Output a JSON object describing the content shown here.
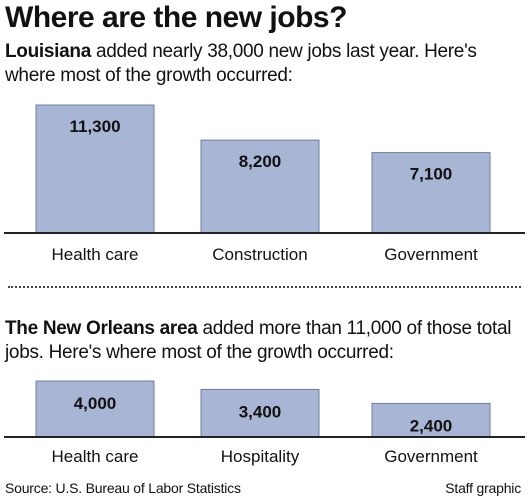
{
  "title": "Where are the new jobs?",
  "chart_data": [
    {
      "type": "bar",
      "intro_lead": "Louisiana",
      "intro_rest": " added nearly 38,000 new jobs last year. Here's where most of the growth occurred:",
      "categories": [
        "Health care",
        "Construction",
        "Government"
      ],
      "values": [
        11300,
        8200,
        7100
      ],
      "value_labels": [
        "11,300",
        "8,200",
        "7,100"
      ],
      "ylim": [
        0,
        11300
      ],
      "bar_color": "#a8b5d4"
    },
    {
      "type": "bar",
      "intro_lead": "The New Orleans area",
      "intro_rest": " added more than 11,000 of those total jobs. Here's where most of the growth occurred:",
      "categories": [
        "Health care",
        "Hospitality",
        "Government"
      ],
      "values": [
        4000,
        3400,
        2400
      ],
      "value_labels": [
        "4,000",
        "3,400",
        "2,400"
      ],
      "ylim": [
        0,
        4000
      ],
      "bar_color": "#a8b5d4"
    }
  ],
  "source": "Source: U.S. Bureau of Labor Statistics",
  "credit": "Staff graphic"
}
